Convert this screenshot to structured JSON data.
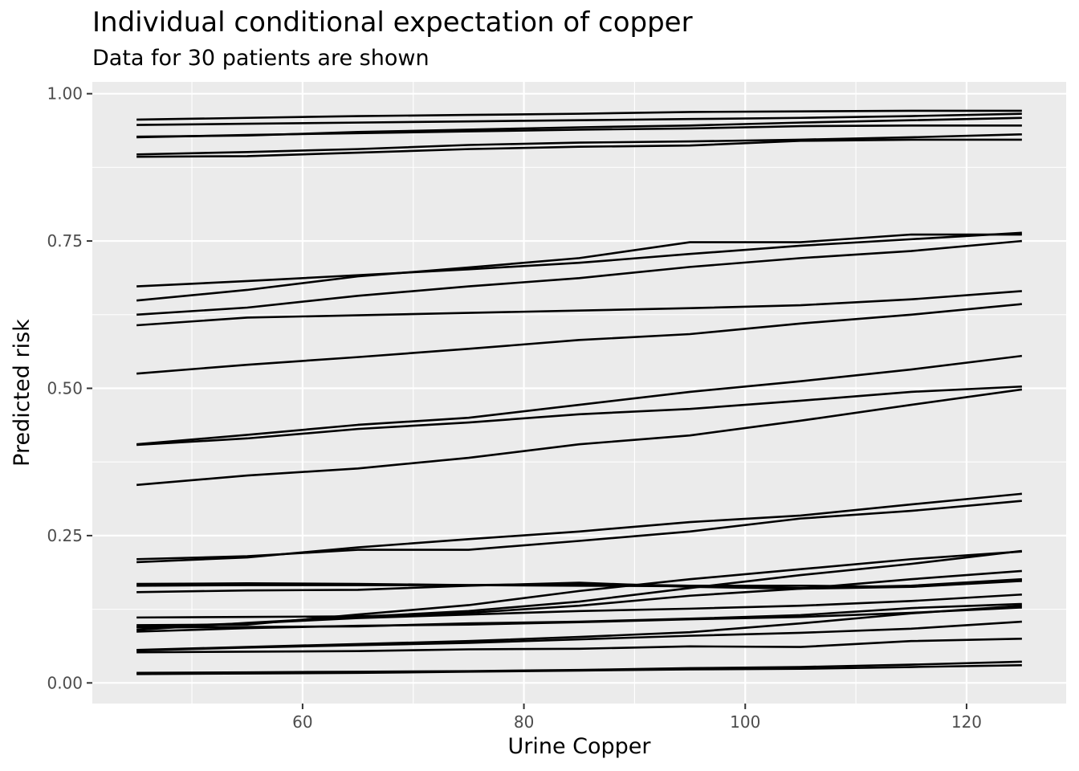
{
  "chart_data": {
    "type": "line",
    "title": "Individual conditional expectation of copper",
    "subtitle": "Data for 30 patients are shown",
    "xlabel": "Urine Copper",
    "ylabel": "Predicted risk",
    "xlim": [
      41,
      129
    ],
    "ylim": [
      -0.035,
      1.02
    ],
    "x_ticks": [
      60,
      80,
      100,
      120
    ],
    "x_tick_labels": [
      "60",
      "80",
      "100",
      "120"
    ],
    "y_ticks": [
      0,
      0.25,
      0.5,
      0.75,
      1.0
    ],
    "y_tick_labels": [
      "0.00",
      "0.25",
      "0.50",
      "0.75",
      "1.00"
    ],
    "grid": true,
    "line_color": "#000000",
    "panel_color": "#ebebeb",
    "x": [
      45,
      55,
      65,
      75,
      85,
      95,
      105,
      115,
      125
    ],
    "series": [
      {
        "values": [
          0.956,
          0.959,
          0.962,
          0.964,
          0.966,
          0.969,
          0.97,
          0.971,
          0.971
        ]
      },
      {
        "values": [
          0.947,
          0.949,
          0.951,
          0.953,
          0.955,
          0.957,
          0.959,
          0.962,
          0.966
        ]
      },
      {
        "values": [
          0.927,
          0.929,
          0.935,
          0.939,
          0.943,
          0.946,
          0.951,
          0.955,
          0.959
        ]
      },
      {
        "values": [
          0.926,
          0.93,
          0.933,
          0.936,
          0.939,
          0.941,
          0.945,
          0.946,
          0.946
        ]
      },
      {
        "values": [
          0.897,
          0.901,
          0.906,
          0.913,
          0.917,
          0.919,
          0.922,
          0.926,
          0.931
        ]
      },
      {
        "values": [
          0.893,
          0.894,
          0.9,
          0.906,
          0.91,
          0.912,
          0.92,
          0.922,
          0.922
        ]
      },
      {
        "values": [
          0.673,
          0.682,
          0.692,
          0.702,
          0.713,
          0.728,
          0.742,
          0.753,
          0.764
        ]
      },
      {
        "values": [
          0.649,
          0.667,
          0.69,
          0.705,
          0.721,
          0.748,
          0.748,
          0.761,
          0.761
        ]
      },
      {
        "values": [
          0.625,
          0.637,
          0.657,
          0.673,
          0.687,
          0.706,
          0.721,
          0.733,
          0.75
        ]
      },
      {
        "values": [
          0.607,
          0.62,
          0.624,
          0.628,
          0.632,
          0.636,
          0.641,
          0.651,
          0.665
        ]
      },
      {
        "values": [
          0.525,
          0.54,
          0.553,
          0.567,
          0.582,
          0.592,
          0.61,
          0.625,
          0.643
        ]
      },
      {
        "values": [
          0.405,
          0.421,
          0.438,
          0.45,
          0.472,
          0.494,
          0.512,
          0.532,
          0.555
        ]
      },
      {
        "values": [
          0.404,
          0.415,
          0.431,
          0.442,
          0.456,
          0.465,
          0.479,
          0.494,
          0.503
        ]
      },
      {
        "values": [
          0.336,
          0.352,
          0.364,
          0.382,
          0.405,
          0.42,
          0.445,
          0.472,
          0.498
        ]
      },
      {
        "values": [
          0.21,
          0.215,
          0.226,
          0.226,
          0.241,
          0.257,
          0.279,
          0.292,
          0.309
        ]
      },
      {
        "values": [
          0.205,
          0.213,
          0.23,
          0.244,
          0.257,
          0.273,
          0.284,
          0.303,
          0.321
        ]
      },
      {
        "values": [
          0.168,
          0.169,
          0.168,
          0.166,
          0.168,
          0.165,
          0.165,
          0.163,
          0.173
        ]
      },
      {
        "values": [
          0.165,
          0.166,
          0.166,
          0.166,
          0.165,
          0.164,
          0.161,
          0.165,
          0.176
        ]
      },
      {
        "values": [
          0.154,
          0.157,
          0.158,
          0.165,
          0.17,
          0.163,
          0.16,
          0.163,
          0.175
        ]
      },
      {
        "values": [
          0.098,
          0.099,
          0.116,
          0.132,
          0.156,
          0.176,
          0.193,
          0.21,
          0.223
        ]
      },
      {
        "values": [
          0.09,
          0.102,
          0.112,
          0.122,
          0.138,
          0.161,
          0.183,
          0.202,
          0.224
        ]
      },
      {
        "values": [
          0.111,
          0.112,
          0.113,
          0.119,
          0.131,
          0.148,
          0.16,
          0.176,
          0.19
        ]
      },
      {
        "values": [
          0.095,
          0.101,
          0.11,
          0.116,
          0.122,
          0.126,
          0.131,
          0.139,
          0.15
        ]
      },
      {
        "values": [
          0.094,
          0.095,
          0.096,
          0.101,
          0.104,
          0.109,
          0.115,
          0.127,
          0.134
        ]
      },
      {
        "values": [
          0.087,
          0.093,
          0.097,
          0.099,
          0.103,
          0.108,
          0.112,
          0.119,
          0.128
        ]
      },
      {
        "values": [
          0.056,
          0.061,
          0.066,
          0.071,
          0.078,
          0.086,
          0.101,
          0.118,
          0.131
        ]
      },
      {
        "values": [
          0.055,
          0.06,
          0.064,
          0.068,
          0.074,
          0.08,
          0.085,
          0.092,
          0.104
        ]
      },
      {
        "values": [
          0.052,
          0.053,
          0.054,
          0.057,
          0.058,
          0.062,
          0.061,
          0.071,
          0.075
        ]
      },
      {
        "values": [
          0.017,
          0.018,
          0.019,
          0.02,
          0.022,
          0.025,
          0.027,
          0.031,
          0.036
        ]
      },
      {
        "values": [
          0.015,
          0.016,
          0.017,
          0.019,
          0.021,
          0.023,
          0.024,
          0.027,
          0.03
        ]
      }
    ]
  }
}
